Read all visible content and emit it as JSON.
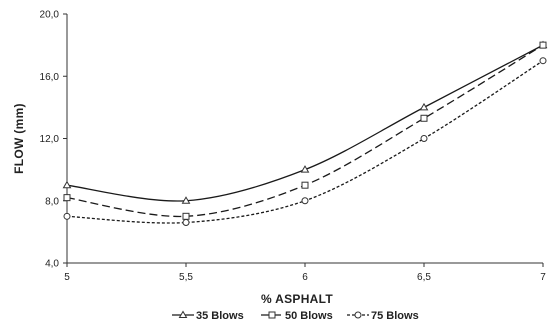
{
  "chart_data": {
    "type": "line",
    "title": "",
    "xlabel": "% ASPHALT",
    "ylabel": "FLOW (mm)",
    "x": [
      5,
      5.5,
      6,
      6.5,
      7
    ],
    "x_tick_labels": [
      "5",
      "5,5",
      "6",
      "6,5",
      "7"
    ],
    "ylim": [
      4.0,
      20.0
    ],
    "y_ticks": [
      4.0,
      8.0,
      12.0,
      16.0,
      20.0
    ],
    "y_tick_labels": [
      "4,0",
      "8,0",
      "12,0",
      "16,0",
      "20,0"
    ],
    "grid": false,
    "legend_position": "bottom",
    "series": [
      {
        "name": "35 Blows",
        "values": [
          9.0,
          8.0,
          10.0,
          14.0,
          18.0
        ],
        "marker": "triangle",
        "line_style": "solid",
        "color": "#1a1a1a"
      },
      {
        "name": "50 Blows",
        "values": [
          8.2,
          7.0,
          9.0,
          13.3,
          18.0
        ],
        "marker": "square",
        "line_style": "dashed",
        "color": "#1a1a1a"
      },
      {
        "name": "75 Blows",
        "values": [
          7.0,
          6.6,
          8.0,
          12.0,
          17.0
        ],
        "marker": "circle",
        "line_style": "dotted",
        "color": "#1a1a1a"
      }
    ]
  }
}
